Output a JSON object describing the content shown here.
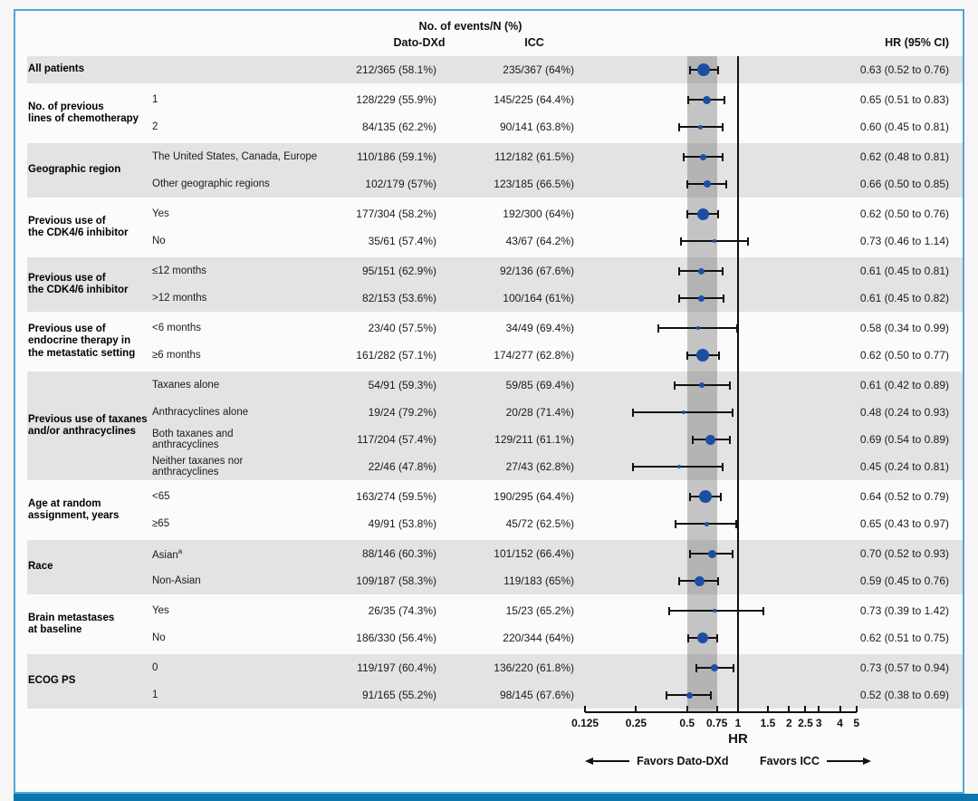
{
  "header": {
    "events_title": "No. of events/N (%)",
    "col_dato": "Dato-DXd",
    "col_icc": "ICC",
    "col_hr": "HR (95% CI)"
  },
  "footer": {
    "xlabel": "HR",
    "favors_left": "Favors Dato-DXd",
    "favors_right": "Favors ICC"
  },
  "colors": {
    "marker": "#1c4fa3",
    "row_shade": "#e3e3e3",
    "band": "rgba(85,85,85,0.33)",
    "border": "#4fa8d5",
    "bottom_bar": "#0b76ad"
  },
  "chart_data": {
    "type": "forest",
    "xscale": "log",
    "xlabel": "HR",
    "xticks": [
      0.125,
      0.25,
      0.5,
      0.75,
      1,
      1.5,
      2,
      2.5,
      3,
      4,
      5
    ],
    "xtick_labels": [
      "0.125",
      "0.25",
      "0.5",
      "0.75",
      "1",
      "1.5",
      "2",
      "2.5",
      "3",
      "4",
      "5"
    ],
    "xlim": [
      0.125,
      5
    ],
    "ref_line": 1,
    "shaded_band": [
      0.5,
      0.75
    ],
    "groups": [
      {
        "label_lines": [
          "All patients"
        ],
        "shaded": true,
        "rows": [
          {
            "sub_lines": [],
            "dato": "212/365 (58.1%)",
            "icc": "235/367 (64%)",
            "hr": 0.63,
            "lo": 0.52,
            "hi": 0.76,
            "hr_text": "0.63 (0.52 to 0.76)",
            "marker_r": 7
          }
        ]
      },
      {
        "label_lines": [
          "No. of previous",
          "lines of chemotherapy"
        ],
        "shaded": false,
        "rows": [
          {
            "sub_lines": [
              "1"
            ],
            "dato": "128/229 (55.9%)",
            "icc": "145/225 (64.4%)",
            "hr": 0.65,
            "lo": 0.51,
            "hi": 0.83,
            "hr_text": "0.65 (0.51 to 0.83)",
            "marker_r": 4.5
          },
          {
            "sub_lines": [
              "2"
            ],
            "dato": "84/135 (62.2%)",
            "icc": "90/141 (63.8%)",
            "hr": 0.6,
            "lo": 0.45,
            "hi": 0.81,
            "hr_text": "0.60 (0.45 to 0.81)",
            "marker_r": 2.5
          }
        ]
      },
      {
        "label_lines": [
          "Geographic region"
        ],
        "shaded": true,
        "rows": [
          {
            "sub_lines": [
              "The United States, Canada, Europe"
            ],
            "dato": "110/186 (59.1%)",
            "icc": "112/182 (61.5%)",
            "hr": 0.62,
            "lo": 0.48,
            "hi": 0.81,
            "hr_text": "0.62 (0.48 to 0.81)",
            "marker_r": 3.5
          },
          {
            "sub_lines": [
              "Other geographic regions"
            ],
            "dato": "102/179 (57%)",
            "icc": "123/185 (66.5%)",
            "hr": 0.66,
            "lo": 0.5,
            "hi": 0.85,
            "hr_text": "0.66 (0.50 to 0.85)",
            "marker_r": 4
          }
        ]
      },
      {
        "label_lines": [
          "Previous use of",
          "the CDK4/6 inhibitor"
        ],
        "shaded": false,
        "rows": [
          {
            "sub_lines": [
              "Yes"
            ],
            "dato": "177/304 (58.2%)",
            "icc": "192/300 (64%)",
            "hr": 0.62,
            "lo": 0.5,
            "hi": 0.76,
            "hr_text": "0.62 (0.50 to 0.76)",
            "marker_r": 6.5
          },
          {
            "sub_lines": [
              "No"
            ],
            "dato": "35/61 (57.4%)",
            "icc": "43/67 (64.2%)",
            "hr": 0.73,
            "lo": 0.46,
            "hi": 1.14,
            "hr_text": "0.73 (0.46 to 1.14)",
            "marker_r": 2
          }
        ]
      },
      {
        "label_lines": [
          "Previous use of",
          "the CDK4/6 inhibitor"
        ],
        "shaded": true,
        "rows": [
          {
            "sub_lines": [
              "≤12 months"
            ],
            "dato": "95/151 (62.9%)",
            "icc": "92/136 (67.6%)",
            "hr": 0.61,
            "lo": 0.45,
            "hi": 0.81,
            "hr_text": "0.61 (0.45 to 0.81)",
            "marker_r": 3.5
          },
          {
            "sub_lines": [
              ">12 months"
            ],
            "dato": "82/153 (53.6%)",
            "icc": "100/164 (61%)",
            "hr": 0.61,
            "lo": 0.45,
            "hi": 0.82,
            "hr_text": "0.61 (0.45 to 0.82)",
            "marker_r": 3.5
          }
        ]
      },
      {
        "label_lines": [
          "Previous use of",
          "endocrine therapy in",
          "the metastatic setting"
        ],
        "shaded": false,
        "rows": [
          {
            "sub_lines": [
              "<6 months"
            ],
            "dato": "23/40 (57.5%)",
            "icc": "34/49 (69.4%)",
            "hr": 0.58,
            "lo": 0.34,
            "hi": 0.99,
            "hr_text": "0.58 (0.34 to 0.99)",
            "marker_r": 2
          },
          {
            "sub_lines": [
              "≥6 months"
            ],
            "dato": "161/282 (57.1%)",
            "icc": "174/277 (62.8%)",
            "hr": 0.62,
            "lo": 0.5,
            "hi": 0.77,
            "hr_text": "0.62 (0.50 to 0.77)",
            "marker_r": 7
          }
        ]
      },
      {
        "label_lines": [
          "Previous use of taxanes",
          "and/or anthracyclines"
        ],
        "shaded": true,
        "rows": [
          {
            "sub_lines": [
              "Taxanes alone"
            ],
            "dato": "54/91 (59.3%)",
            "icc": "59/85 (69.4%)",
            "hr": 0.61,
            "lo": 0.42,
            "hi": 0.89,
            "hr_text": "0.61 (0.42 to 0.89)",
            "marker_r": 3
          },
          {
            "sub_lines": [
              "Anthracyclines alone"
            ],
            "dato": "19/24 (79.2%)",
            "icc": "20/28 (71.4%)",
            "hr": 0.48,
            "lo": 0.24,
            "hi": 0.93,
            "hr_text": "0.48 (0.24 to 0.93)",
            "marker_r": 2
          },
          {
            "sub_lines": [
              "Both taxanes and",
              "anthracyclines"
            ],
            "dato": "117/204 (57.4%)",
            "icc": "129/211 (61.1%)",
            "hr": 0.69,
            "lo": 0.54,
            "hi": 0.89,
            "hr_text": "0.69 (0.54 to 0.89)",
            "marker_r": 5.5
          },
          {
            "sub_lines": [
              "Neither taxanes nor",
              "anthracyclines"
            ],
            "dato": "22/46 (47.8%)",
            "icc": "27/43 (62.8%)",
            "hr": 0.45,
            "lo": 0.24,
            "hi": 0.81,
            "hr_text": "0.45 (0.24 to 0.81)",
            "marker_r": 2
          }
        ]
      },
      {
        "label_lines": [
          "Age at random",
          "assignment, years"
        ],
        "shaded": false,
        "rows": [
          {
            "sub_lines": [
              "<65"
            ],
            "dato": "163/274 (59.5%)",
            "icc": "190/295 (64.4%)",
            "hr": 0.64,
            "lo": 0.52,
            "hi": 0.79,
            "hr_text": "0.64 (0.52 to 0.79)",
            "marker_r": 7
          },
          {
            "sub_lines": [
              "≥65"
            ],
            "dato": "49/91 (53.8%)",
            "icc": "45/72 (62.5%)",
            "hr": 0.65,
            "lo": 0.43,
            "hi": 0.97,
            "hr_text": "0.65 (0.43 to 0.97)",
            "marker_r": 2.5
          }
        ]
      },
      {
        "label_lines": [
          "Race"
        ],
        "shaded": true,
        "rows": [
          {
            "sub_lines": [
              "Asian"
            ],
            "sup": "a",
            "dato": "88/146 (60.3%)",
            "icc": "101/152 (66.4%)",
            "hr": 0.7,
            "lo": 0.52,
            "hi": 0.93,
            "hr_text": "0.70 (0.52 to 0.93)",
            "marker_r": 4.5
          },
          {
            "sub_lines": [
              "Non-Asian"
            ],
            "dato": "109/187 (58.3%)",
            "icc": "119/183 (65%)",
            "hr": 0.59,
            "lo": 0.45,
            "hi": 0.76,
            "hr_text": "0.59 (0.45 to 0.76)",
            "marker_r": 5.5
          }
        ]
      },
      {
        "label_lines": [
          "Brain metastases",
          "at baseline"
        ],
        "shaded": false,
        "rows": [
          {
            "sub_lines": [
              "Yes"
            ],
            "dato": "26/35 (74.3%)",
            "icc": "15/23 (65.2%)",
            "hr": 0.73,
            "lo": 0.39,
            "hi": 1.42,
            "hr_text": "0.73 (0.39 to 1.42)",
            "marker_r": 2
          },
          {
            "sub_lines": [
              "No"
            ],
            "dato": "186/330 (56.4%)",
            "icc": "220/344 (64%)",
            "hr": 0.62,
            "lo": 0.51,
            "hi": 0.75,
            "hr_text": "0.62 (0.51 to 0.75)",
            "marker_r": 6
          }
        ]
      },
      {
        "label_lines": [
          "ECOG PS"
        ],
        "shaded": true,
        "rows": [
          {
            "sub_lines": [
              "0"
            ],
            "dato": "119/197 (60.4%)",
            "icc": "136/220 (61.8%)",
            "hr": 0.73,
            "lo": 0.57,
            "hi": 0.94,
            "hr_text": "0.73 (0.57 to 0.94)",
            "marker_r": 4
          },
          {
            "sub_lines": [
              "1"
            ],
            "dato": "91/165 (55.2%)",
            "icc": "98/145 (67.6%)",
            "hr": 0.52,
            "lo": 0.38,
            "hi": 0.69,
            "hr_text": "0.52 (0.38 to 0.69)",
            "marker_r": 3.5
          }
        ]
      }
    ]
  }
}
